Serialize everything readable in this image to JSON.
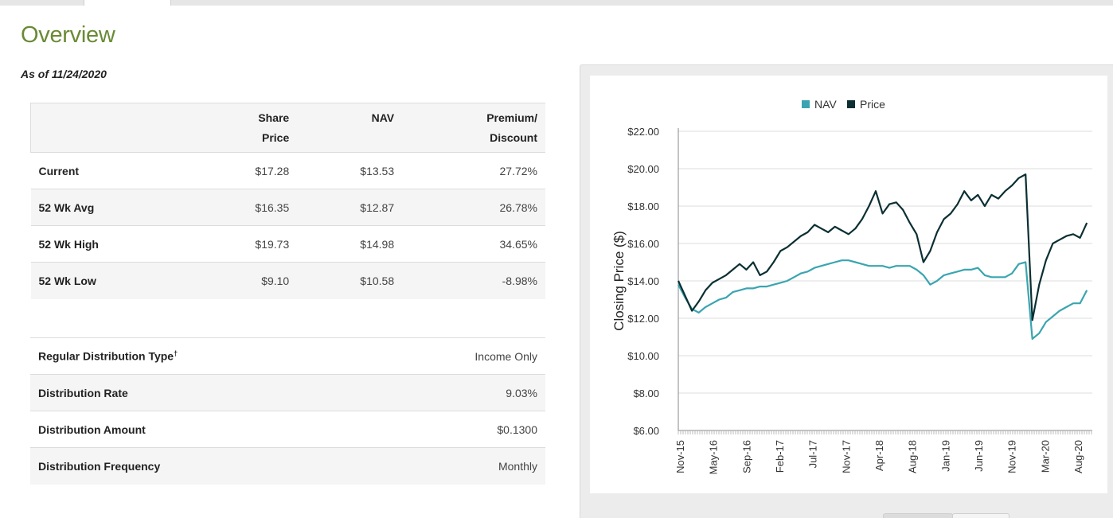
{
  "page": {
    "title": "Overview",
    "as_of": "As of 11/24/2020"
  },
  "pricing_table": {
    "headers": {
      "share_price": [
        "Share",
        "Price"
      ],
      "nav": "NAV",
      "premium_discount": [
        "Premium/",
        "Discount"
      ]
    },
    "rows": [
      {
        "label": "Current",
        "share_price": "$17.28",
        "nav": "$13.53",
        "premium": "27.72%"
      },
      {
        "label": "52 Wk Avg",
        "share_price": "$16.35",
        "nav": "$12.87",
        "premium": "26.78%"
      },
      {
        "label": "52 Wk High",
        "share_price": "$19.73",
        "nav": "$14.98",
        "premium": "34.65%"
      },
      {
        "label": "52 Wk Low",
        "share_price": "$9.10",
        "nav": "$10.58",
        "premium": "-8.98%"
      }
    ]
  },
  "distribution_table": {
    "rows": [
      {
        "label": "Regular Distribution Type",
        "sup": "†",
        "value": "Income Only"
      },
      {
        "label": "Distribution Rate",
        "value": "9.03%"
      },
      {
        "label": "Distribution Amount",
        "value": "$0.1300"
      },
      {
        "label": "Distribution Frequency",
        "value": "Monthly"
      }
    ]
  },
  "chart_data": {
    "type": "line",
    "ylabel": "Closing Price ($)",
    "ylim": [
      6,
      22
    ],
    "yticks": [
      "$6.00",
      "$8.00",
      "$10.00",
      "$12.00",
      "$14.00",
      "$16.00",
      "$18.00",
      "$20.00",
      "$22.00"
    ],
    "xticks": [
      "Nov-15",
      "May-16",
      "Sep-16",
      "Feb-17",
      "Jul-17",
      "Nov-17",
      "Apr-18",
      "Aug-18",
      "Jan-19",
      "Jun-19",
      "Nov-19",
      "Mar-20",
      "Aug-20"
    ],
    "legend_position": "top",
    "grid": true,
    "colors": {
      "NAV": "#3aa5b0",
      "Price": "#0b2f33"
    },
    "series": [
      {
        "name": "NAV",
        "points": [
          [
            "2015-11",
            13.8
          ],
          [
            "2015-12",
            13.1
          ],
          [
            "2016-01",
            12.5
          ],
          [
            "2016-02",
            12.3
          ],
          [
            "2016-03",
            12.6
          ],
          [
            "2016-04",
            12.8
          ],
          [
            "2016-05",
            13.0
          ],
          [
            "2016-06",
            13.1
          ],
          [
            "2016-07",
            13.4
          ],
          [
            "2016-08",
            13.5
          ],
          [
            "2016-09",
            13.6
          ],
          [
            "2016-10",
            13.6
          ],
          [
            "2016-11",
            13.7
          ],
          [
            "2016-12",
            13.7
          ],
          [
            "2017-01",
            13.8
          ],
          [
            "2017-02",
            13.9
          ],
          [
            "2017-03",
            14.0
          ],
          [
            "2017-04",
            14.2
          ],
          [
            "2017-05",
            14.4
          ],
          [
            "2017-06",
            14.5
          ],
          [
            "2017-07",
            14.7
          ],
          [
            "2017-08",
            14.8
          ],
          [
            "2017-09",
            14.9
          ],
          [
            "2017-10",
            15.0
          ],
          [
            "2017-11",
            15.1
          ],
          [
            "2017-12",
            15.1
          ],
          [
            "2018-01",
            15.0
          ],
          [
            "2018-02",
            14.9
          ],
          [
            "2018-03",
            14.8
          ],
          [
            "2018-04",
            14.8
          ],
          [
            "2018-05",
            14.8
          ],
          [
            "2018-06",
            14.7
          ],
          [
            "2018-07",
            14.8
          ],
          [
            "2018-08",
            14.8
          ],
          [
            "2018-09",
            14.8
          ],
          [
            "2018-10",
            14.6
          ],
          [
            "2018-11",
            14.3
          ],
          [
            "2018-12",
            13.8
          ],
          [
            "2019-01",
            14.0
          ],
          [
            "2019-02",
            14.3
          ],
          [
            "2019-03",
            14.4
          ],
          [
            "2019-04",
            14.5
          ],
          [
            "2019-05",
            14.6
          ],
          [
            "2019-06",
            14.6
          ],
          [
            "2019-07",
            14.7
          ],
          [
            "2019-08",
            14.3
          ],
          [
            "2019-09",
            14.2
          ],
          [
            "2019-10",
            14.2
          ],
          [
            "2019-11",
            14.2
          ],
          [
            "2019-12",
            14.4
          ],
          [
            "2020-01",
            14.9
          ],
          [
            "2020-02",
            15.0
          ],
          [
            "2020-03",
            10.9
          ],
          [
            "2020-04",
            11.2
          ],
          [
            "2020-05",
            11.8
          ],
          [
            "2020-06",
            12.1
          ],
          [
            "2020-07",
            12.4
          ],
          [
            "2020-08",
            12.6
          ],
          [
            "2020-09",
            12.8
          ],
          [
            "2020-10",
            12.8
          ],
          [
            "2020-11",
            13.5
          ]
        ]
      },
      {
        "name": "Price",
        "points": [
          [
            "2015-11",
            14.0
          ],
          [
            "2015-12",
            13.2
          ],
          [
            "2016-01",
            12.4
          ],
          [
            "2016-02",
            12.9
          ],
          [
            "2016-03",
            13.5
          ],
          [
            "2016-04",
            13.9
          ],
          [
            "2016-05",
            14.1
          ],
          [
            "2016-06",
            14.3
          ],
          [
            "2016-07",
            14.6
          ],
          [
            "2016-08",
            14.9
          ],
          [
            "2016-09",
            14.6
          ],
          [
            "2016-10",
            15.0
          ],
          [
            "2016-11",
            14.3
          ],
          [
            "2016-12",
            14.5
          ],
          [
            "2017-01",
            15.0
          ],
          [
            "2017-02",
            15.6
          ],
          [
            "2017-03",
            15.8
          ],
          [
            "2017-04",
            16.1
          ],
          [
            "2017-05",
            16.4
          ],
          [
            "2017-06",
            16.6
          ],
          [
            "2017-07",
            17.0
          ],
          [
            "2017-08",
            16.8
          ],
          [
            "2017-09",
            16.6
          ],
          [
            "2017-10",
            16.9
          ],
          [
            "2017-11",
            16.7
          ],
          [
            "2017-12",
            16.5
          ],
          [
            "2018-01",
            16.8
          ],
          [
            "2018-02",
            17.3
          ],
          [
            "2018-03",
            18.0
          ],
          [
            "2018-04",
            18.8
          ],
          [
            "2018-05",
            17.6
          ],
          [
            "2018-06",
            18.1
          ],
          [
            "2018-07",
            18.2
          ],
          [
            "2018-08",
            17.8
          ],
          [
            "2018-09",
            17.1
          ],
          [
            "2018-10",
            16.5
          ],
          [
            "2018-11",
            15.0
          ],
          [
            "2018-12",
            15.6
          ],
          [
            "2019-01",
            16.6
          ],
          [
            "2019-02",
            17.3
          ],
          [
            "2019-03",
            17.6
          ],
          [
            "2019-04",
            18.1
          ],
          [
            "2019-05",
            18.8
          ],
          [
            "2019-06",
            18.3
          ],
          [
            "2019-07",
            18.6
          ],
          [
            "2019-08",
            18.0
          ],
          [
            "2019-09",
            18.6
          ],
          [
            "2019-10",
            18.4
          ],
          [
            "2019-11",
            18.8
          ],
          [
            "2019-12",
            19.1
          ],
          [
            "2020-01",
            19.5
          ],
          [
            "2020-02",
            19.7
          ],
          [
            "2020-03",
            11.9
          ],
          [
            "2020-04",
            13.8
          ],
          [
            "2020-05",
            15.1
          ],
          [
            "2020-06",
            16.0
          ],
          [
            "2020-07",
            16.2
          ],
          [
            "2020-08",
            16.4
          ],
          [
            "2020-09",
            16.5
          ],
          [
            "2020-10",
            16.3
          ],
          [
            "2020-11",
            17.1
          ]
        ]
      }
    ]
  }
}
